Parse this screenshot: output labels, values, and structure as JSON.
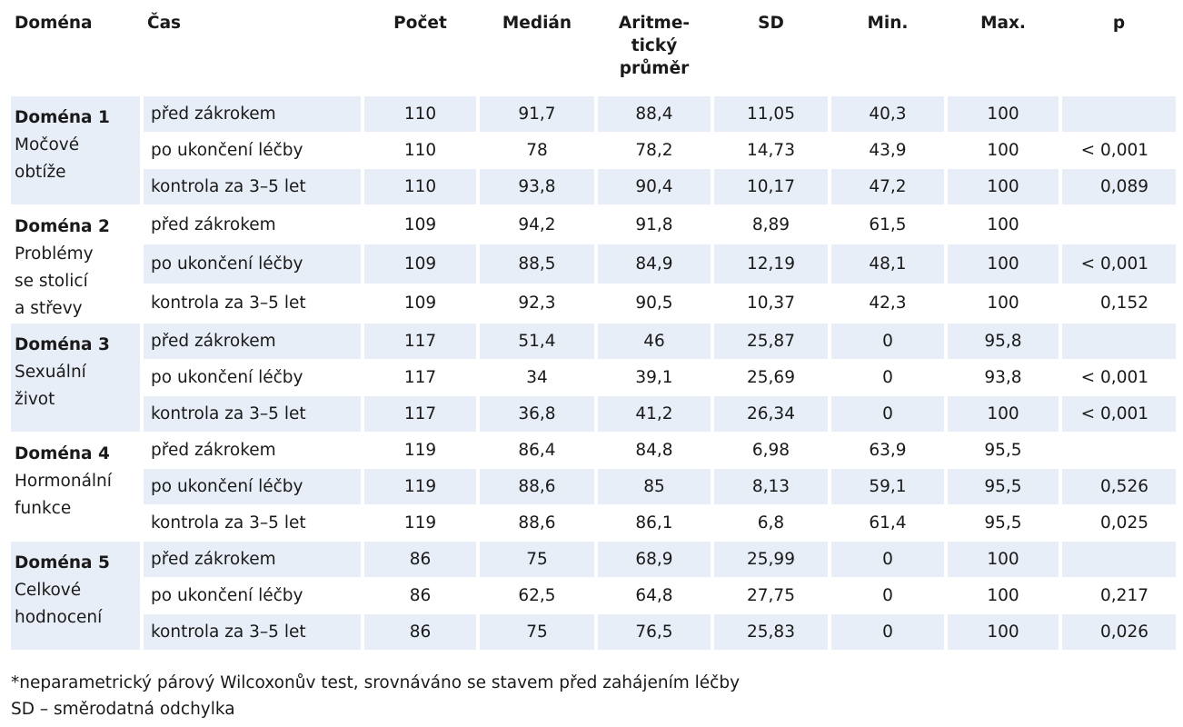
{
  "table": {
    "columns": [
      [
        "Doména"
      ],
      [
        "Čas"
      ],
      [
        "Počet"
      ],
      [
        "Medián"
      ],
      [
        "Aritme-",
        "tický",
        "průměr"
      ],
      [
        "SD"
      ],
      [
        "Min."
      ],
      [
        "Max."
      ],
      [
        "p"
      ]
    ],
    "groups": [
      {
        "title": "Doména 1",
        "subtitle_lines": [
          "Močové",
          "obtíže"
        ],
        "rows": [
          [
            "před zákrokem",
            "110",
            "91,7",
            "88,4",
            "11,05",
            "40,3",
            "100",
            null
          ],
          [
            "po ukončení léčby",
            "110",
            "78",
            "78,2",
            "14,73",
            "43,9",
            "100",
            "< 0,001"
          ],
          [
            "kontrola za 3–5 let",
            "110",
            "93,8",
            "90,4",
            "10,17",
            "47,2",
            "100",
            "0,089"
          ]
        ]
      },
      {
        "title": "Doména 2",
        "subtitle_lines": [
          "Problémy",
          "se stolicí",
          "a střevy"
        ],
        "rows": [
          [
            "před zákrokem",
            "109",
            "94,2",
            "91,8",
            "8,89",
            "61,5",
            "100",
            null
          ],
          [
            "po ukončení léčby",
            "109",
            "88,5",
            "84,9",
            "12,19",
            "48,1",
            "100",
            "< 0,001"
          ],
          [
            "kontrola za 3–5 let",
            "109",
            "92,3",
            "90,5",
            "10,37",
            "42,3",
            "100",
            "0,152"
          ]
        ]
      },
      {
        "title": "Doména 3",
        "subtitle_lines": [
          "Sexuální",
          "život"
        ],
        "rows": [
          [
            "před zákrokem",
            "117",
            "51,4",
            "46",
            "25,87",
            "0",
            "95,8",
            null
          ],
          [
            "po ukončení léčby",
            "117",
            "34",
            "39,1",
            "25,69",
            "0",
            "93,8",
            "< 0,001"
          ],
          [
            "kontrola za 3–5 let",
            "117",
            "36,8",
            "41,2",
            "26,34",
            "0",
            "100",
            "< 0,001"
          ]
        ]
      },
      {
        "title": "Doména 4",
        "subtitle_lines": [
          "Hormonální",
          "funkce"
        ],
        "rows": [
          [
            "před zákrokem",
            "119",
            "86,4",
            "84,8",
            "6,98",
            "63,9",
            "95,5",
            null
          ],
          [
            "po ukončení léčby",
            "119",
            "88,6",
            "85",
            "8,13",
            "59,1",
            "95,5",
            "0,526"
          ],
          [
            "kontrola za 3–5 let",
            "119",
            "88,6",
            "86,1",
            "6,8",
            "61,4",
            "95,5",
            "0,025"
          ]
        ]
      },
      {
        "title": "Doména 5",
        "subtitle_lines": [
          "Celkové",
          "hodnocení"
        ],
        "rows": [
          [
            "před zákrokem",
            "86",
            "75",
            "68,9",
            "25,99",
            "0",
            "100",
            null
          ],
          [
            "po ukončení léčby",
            "86",
            "62,5",
            "64,8",
            "27,75",
            "0",
            "100",
            "0,217"
          ],
          [
            "kontrola za 3–5 let",
            "86",
            "75",
            "76,5",
            "25,83",
            "0",
            "100",
            "0,026"
          ]
        ]
      }
    ]
  },
  "footnotes": [
    "*neparametrický párový Wilcoxonův test, srovnáváno se stavem před zahájením léčby",
    "SD – směrodatná odchylka"
  ]
}
